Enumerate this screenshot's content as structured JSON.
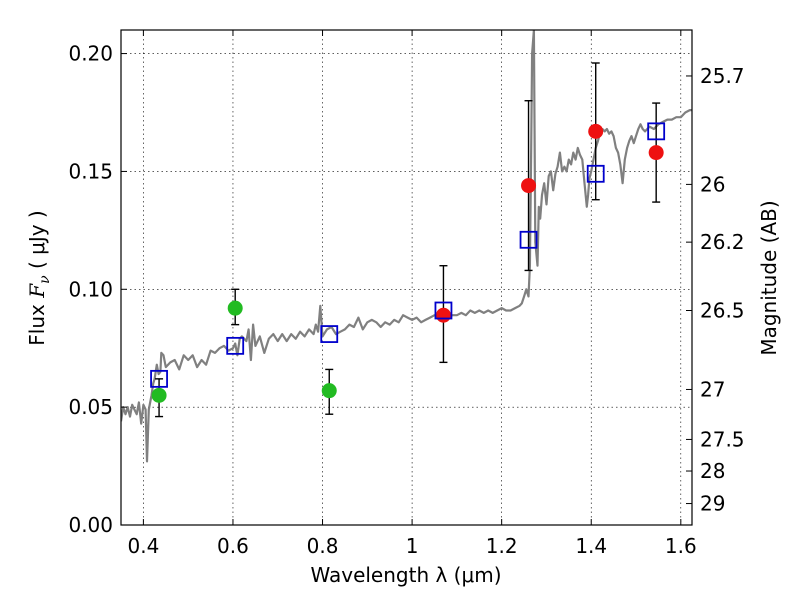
{
  "chart_data": {
    "type": "scatter",
    "xlabel": "Wavelength  λ (μm)",
    "ylabel": "Flux  F_ν  ( μJy )",
    "ylabel_parts": {
      "pre": "Flux  ",
      "F": "F",
      "nu": "ν",
      "post": "  ( μJy )"
    },
    "y2label": "Magnitude (AB)",
    "xlim": [
      0.35,
      1.625
    ],
    "ylim": [
      0.0,
      0.21
    ],
    "grid": true,
    "x_ticks": [
      {
        "value": 0.4,
        "label": "0.4"
      },
      {
        "value": 0.6,
        "label": "0.6"
      },
      {
        "value": 0.8,
        "label": "0.8"
      },
      {
        "value": 1.0,
        "label": "1"
      },
      {
        "value": 1.2,
        "label": "1.2"
      },
      {
        "value": 1.4,
        "label": "1.4"
      },
      {
        "value": 1.6,
        "label": "1.6"
      }
    ],
    "y_ticks": [
      {
        "value": 0.0,
        "label": "0.00"
      },
      {
        "value": 0.05,
        "label": "0.05"
      },
      {
        "value": 0.1,
        "label": "0.10"
      },
      {
        "value": 0.15,
        "label": "0.15"
      },
      {
        "value": 0.2,
        "label": "0.20"
      }
    ],
    "y2_ticks": [
      {
        "flux": 0.1905,
        "label": "25.7"
      },
      {
        "flux": 0.1445,
        "label": "26"
      },
      {
        "flux": 0.12,
        "label": "26.2"
      },
      {
        "flux": 0.091,
        "label": "26.5"
      },
      {
        "flux": 0.0575,
        "label": "27"
      },
      {
        "flux": 0.0363,
        "label": "27.5"
      },
      {
        "flux": 0.0229,
        "label": "28"
      },
      {
        "flux": 0.0091,
        "label": "29"
      }
    ],
    "template_spectrum": {
      "color": "#808080",
      "points": [
        [
          0.35,
          0.044
        ],
        [
          0.355,
          0.05
        ],
        [
          0.36,
          0.047
        ],
        [
          0.365,
          0.05
        ],
        [
          0.37,
          0.046
        ],
        [
          0.375,
          0.051
        ],
        [
          0.38,
          0.049
        ],
        [
          0.385,
          0.047
        ],
        [
          0.39,
          0.052
        ],
        [
          0.395,
          0.043
        ],
        [
          0.4,
          0.051
        ],
        [
          0.405,
          0.049
        ],
        [
          0.408,
          0.027
        ],
        [
          0.412,
          0.049
        ],
        [
          0.418,
          0.055
        ],
        [
          0.422,
          0.06
        ],
        [
          0.425,
          0.062
        ],
        [
          0.43,
          0.068
        ],
        [
          0.434,
          0.064
        ],
        [
          0.438,
          0.065
        ],
        [
          0.44,
          0.073
        ],
        [
          0.445,
          0.072
        ],
        [
          0.45,
          0.067
        ],
        [
          0.46,
          0.069
        ],
        [
          0.47,
          0.07
        ],
        [
          0.48,
          0.066
        ],
        [
          0.49,
          0.072
        ],
        [
          0.5,
          0.07
        ],
        [
          0.51,
          0.072
        ],
        [
          0.52,
          0.067
        ],
        [
          0.53,
          0.07
        ],
        [
          0.54,
          0.068
        ],
        [
          0.55,
          0.074
        ],
        [
          0.56,
          0.073
        ],
        [
          0.57,
          0.075
        ],
        [
          0.58,
          0.076
        ],
        [
          0.59,
          0.074
        ],
        [
          0.6,
          0.075
        ],
        [
          0.605,
          0.077
        ],
        [
          0.61,
          0.072
        ],
        [
          0.615,
          0.079
        ],
        [
          0.62,
          0.08
        ],
        [
          0.63,
          0.078
        ],
        [
          0.635,
          0.083
        ],
        [
          0.64,
          0.07
        ],
        [
          0.645,
          0.085
        ],
        [
          0.65,
          0.076
        ],
        [
          0.66,
          0.08
        ],
        [
          0.67,
          0.073
        ],
        [
          0.68,
          0.079
        ],
        [
          0.69,
          0.081
        ],
        [
          0.7,
          0.078
        ],
        [
          0.71,
          0.081
        ],
        [
          0.72,
          0.078
        ],
        [
          0.73,
          0.081
        ],
        [
          0.74,
          0.079
        ],
        [
          0.75,
          0.082
        ],
        [
          0.76,
          0.08
        ],
        [
          0.77,
          0.083
        ],
        [
          0.78,
          0.081
        ],
        [
          0.785,
          0.085
        ],
        [
          0.79,
          0.082
        ],
        [
          0.795,
          0.093
        ],
        [
          0.8,
          0.08
        ],
        [
          0.81,
          0.083
        ],
        [
          0.82,
          0.084
        ],
        [
          0.83,
          0.081
        ],
        [
          0.84,
          0.082
        ],
        [
          0.85,
          0.083
        ],
        [
          0.86,
          0.085
        ],
        [
          0.87,
          0.084
        ],
        [
          0.88,
          0.088
        ],
        [
          0.89,
          0.083
        ],
        [
          0.9,
          0.086
        ],
        [
          0.91,
          0.087
        ],
        [
          0.92,
          0.086
        ],
        [
          0.93,
          0.084
        ],
        [
          0.94,
          0.086
        ],
        [
          0.95,
          0.085
        ],
        [
          0.96,
          0.087
        ],
        [
          0.97,
          0.086
        ],
        [
          0.98,
          0.089
        ],
        [
          0.99,
          0.088
        ],
        [
          1.0,
          0.087
        ],
        [
          1.01,
          0.088
        ],
        [
          1.02,
          0.086
        ],
        [
          1.03,
          0.087
        ],
        [
          1.04,
          0.088
        ],
        [
          1.05,
          0.089
        ],
        [
          1.06,
          0.088
        ],
        [
          1.07,
          0.09
        ],
        [
          1.08,
          0.088
        ],
        [
          1.09,
          0.089
        ],
        [
          1.1,
          0.089
        ],
        [
          1.11,
          0.09
        ],
        [
          1.12,
          0.089
        ],
        [
          1.13,
          0.091
        ],
        [
          1.14,
          0.09
        ],
        [
          1.15,
          0.091
        ],
        [
          1.16,
          0.09
        ],
        [
          1.17,
          0.091
        ],
        [
          1.18,
          0.09
        ],
        [
          1.19,
          0.091
        ],
        [
          1.2,
          0.092
        ],
        [
          1.21,
          0.091
        ],
        [
          1.22,
          0.091
        ],
        [
          1.23,
          0.092
        ],
        [
          1.24,
          0.093
        ],
        [
          1.245,
          0.094
        ],
        [
          1.25,
          0.097
        ],
        [
          1.255,
          0.1
        ],
        [
          1.26,
          0.097
        ],
        [
          1.263,
          0.11
        ],
        [
          1.266,
          0.16
        ],
        [
          1.268,
          0.2
        ],
        [
          1.272,
          0.21
        ],
        [
          1.275,
          0.12
        ],
        [
          1.28,
          0.11
        ],
        [
          1.283,
          0.135
        ],
        [
          1.286,
          0.13
        ],
        [
          1.29,
          0.14
        ],
        [
          1.295,
          0.145
        ],
        [
          1.3,
          0.136
        ],
        [
          1.305,
          0.148
        ],
        [
          1.31,
          0.15
        ],
        [
          1.315,
          0.142
        ],
        [
          1.32,
          0.149
        ],
        [
          1.325,
          0.152
        ],
        [
          1.33,
          0.158
        ],
        [
          1.335,
          0.15
        ],
        [
          1.34,
          0.152
        ],
        [
          1.345,
          0.15
        ],
        [
          1.35,
          0.155
        ],
        [
          1.355,
          0.153
        ],
        [
          1.36,
          0.158
        ],
        [
          1.365,
          0.155
        ],
        [
          1.37,
          0.16
        ],
        [
          1.375,
          0.157
        ],
        [
          1.38,
          0.155
        ],
        [
          1.385,
          0.145
        ],
        [
          1.39,
          0.135
        ],
        [
          1.393,
          0.14
        ],
        [
          1.396,
          0.147
        ],
        [
          1.4,
          0.15
        ],
        [
          1.405,
          0.155
        ],
        [
          1.41,
          0.16
        ],
        [
          1.415,
          0.163
        ],
        [
          1.42,
          0.167
        ],
        [
          1.425,
          0.168
        ],
        [
          1.43,
          0.167
        ],
        [
          1.435,
          0.168
        ],
        [
          1.44,
          0.166
        ],
        [
          1.445,
          0.167
        ],
        [
          1.45,
          0.165
        ],
        [
          1.455,
          0.16
        ],
        [
          1.46,
          0.158
        ],
        [
          1.465,
          0.153
        ],
        [
          1.47,
          0.145
        ],
        [
          1.475,
          0.155
        ],
        [
          1.48,
          0.16
        ],
        [
          1.485,
          0.163
        ],
        [
          1.49,
          0.165
        ],
        [
          1.495,
          0.162
        ],
        [
          1.5,
          0.165
        ],
        [
          1.505,
          0.168
        ],
        [
          1.51,
          0.17
        ],
        [
          1.515,
          0.168
        ],
        [
          1.52,
          0.167
        ],
        [
          1.53,
          0.169
        ],
        [
          1.54,
          0.168
        ],
        [
          1.55,
          0.17
        ],
        [
          1.56,
          0.171
        ],
        [
          1.57,
          0.172
        ],
        [
          1.58,
          0.172
        ],
        [
          1.59,
          0.173
        ],
        [
          1.6,
          0.173
        ],
        [
          1.61,
          0.175
        ],
        [
          1.62,
          0.176
        ],
        [
          1.625,
          0.176
        ]
      ]
    },
    "model_points": {
      "color": "#0000cc",
      "marker": "open-square",
      "points": [
        {
          "x": 0.435,
          "y": 0.062
        },
        {
          "x": 0.605,
          "y": 0.076
        },
        {
          "x": 0.815,
          "y": 0.081
        },
        {
          "x": 1.07,
          "y": 0.091
        },
        {
          "x": 1.26,
          "y": 0.121
        },
        {
          "x": 1.41,
          "y": 0.149
        },
        {
          "x": 1.545,
          "y": 0.167
        }
      ]
    },
    "observed_points": [
      {
        "x": 0.435,
        "y": 0.055,
        "yerr_lo": 0.046,
        "yerr_hi": 0.062,
        "color": "#22bb22"
      },
      {
        "x": 0.605,
        "y": 0.092,
        "yerr_lo": 0.085,
        "yerr_hi": 0.1,
        "color": "#22bb22"
      },
      {
        "x": 0.815,
        "y": 0.057,
        "yerr_lo": 0.047,
        "yerr_hi": 0.066,
        "color": "#22bb22"
      },
      {
        "x": 1.07,
        "y": 0.089,
        "yerr_lo": 0.069,
        "yerr_hi": 0.11,
        "color": "#ee1111"
      },
      {
        "x": 1.26,
        "y": 0.144,
        "yerr_lo": 0.108,
        "yerr_hi": 0.18,
        "color": "#ee1111"
      },
      {
        "x": 1.41,
        "y": 0.167,
        "yerr_lo": 0.138,
        "yerr_hi": 0.196,
        "color": "#ee1111"
      },
      {
        "x": 1.545,
        "y": 0.158,
        "yerr_lo": 0.137,
        "yerr_hi": 0.179,
        "color": "#ee1111"
      }
    ]
  }
}
